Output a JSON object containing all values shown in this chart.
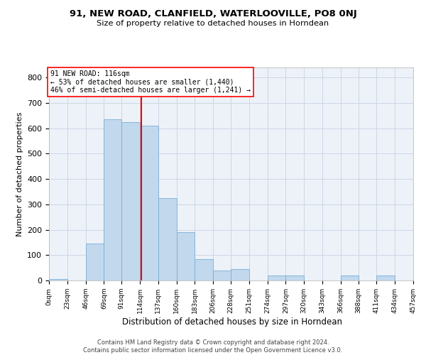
{
  "title1": "91, NEW ROAD, CLANFIELD, WATERLOOVILLE, PO8 0NJ",
  "title2": "Size of property relative to detached houses in Horndean",
  "xlabel": "Distribution of detached houses by size in Horndean",
  "ylabel": "Number of detached properties",
  "bar_color": "#c2d8ed",
  "bar_edge_color": "#7aafd4",
  "annotation_line_color": "red",
  "annotation_value": 116,
  "annotation_text_lines": [
    "91 NEW ROAD: 116sqm",
    "← 53% of detached houses are smaller (1,440)",
    "46% of semi-detached houses are larger (1,241) →"
  ],
  "bins": [
    0,
    23,
    46,
    69,
    91,
    114,
    137,
    160,
    183,
    206,
    228,
    251,
    274,
    297,
    320,
    343,
    366,
    388,
    411,
    434,
    457
  ],
  "bar_heights": [
    5,
    0,
    145,
    635,
    625,
    610,
    325,
    190,
    85,
    40,
    45,
    0,
    20,
    20,
    0,
    0,
    20,
    0,
    20,
    0
  ],
  "ylim": [
    0,
    840
  ],
  "yticks": [
    0,
    100,
    200,
    300,
    400,
    500,
    600,
    700,
    800
  ],
  "grid_color": "#ccd6e6",
  "bg_color": "#edf2f9",
  "footer_line1": "Contains HM Land Registry data © Crown copyright and database right 2024.",
  "footer_line2": "Contains public sector information licensed under the Open Government Licence v3.0."
}
